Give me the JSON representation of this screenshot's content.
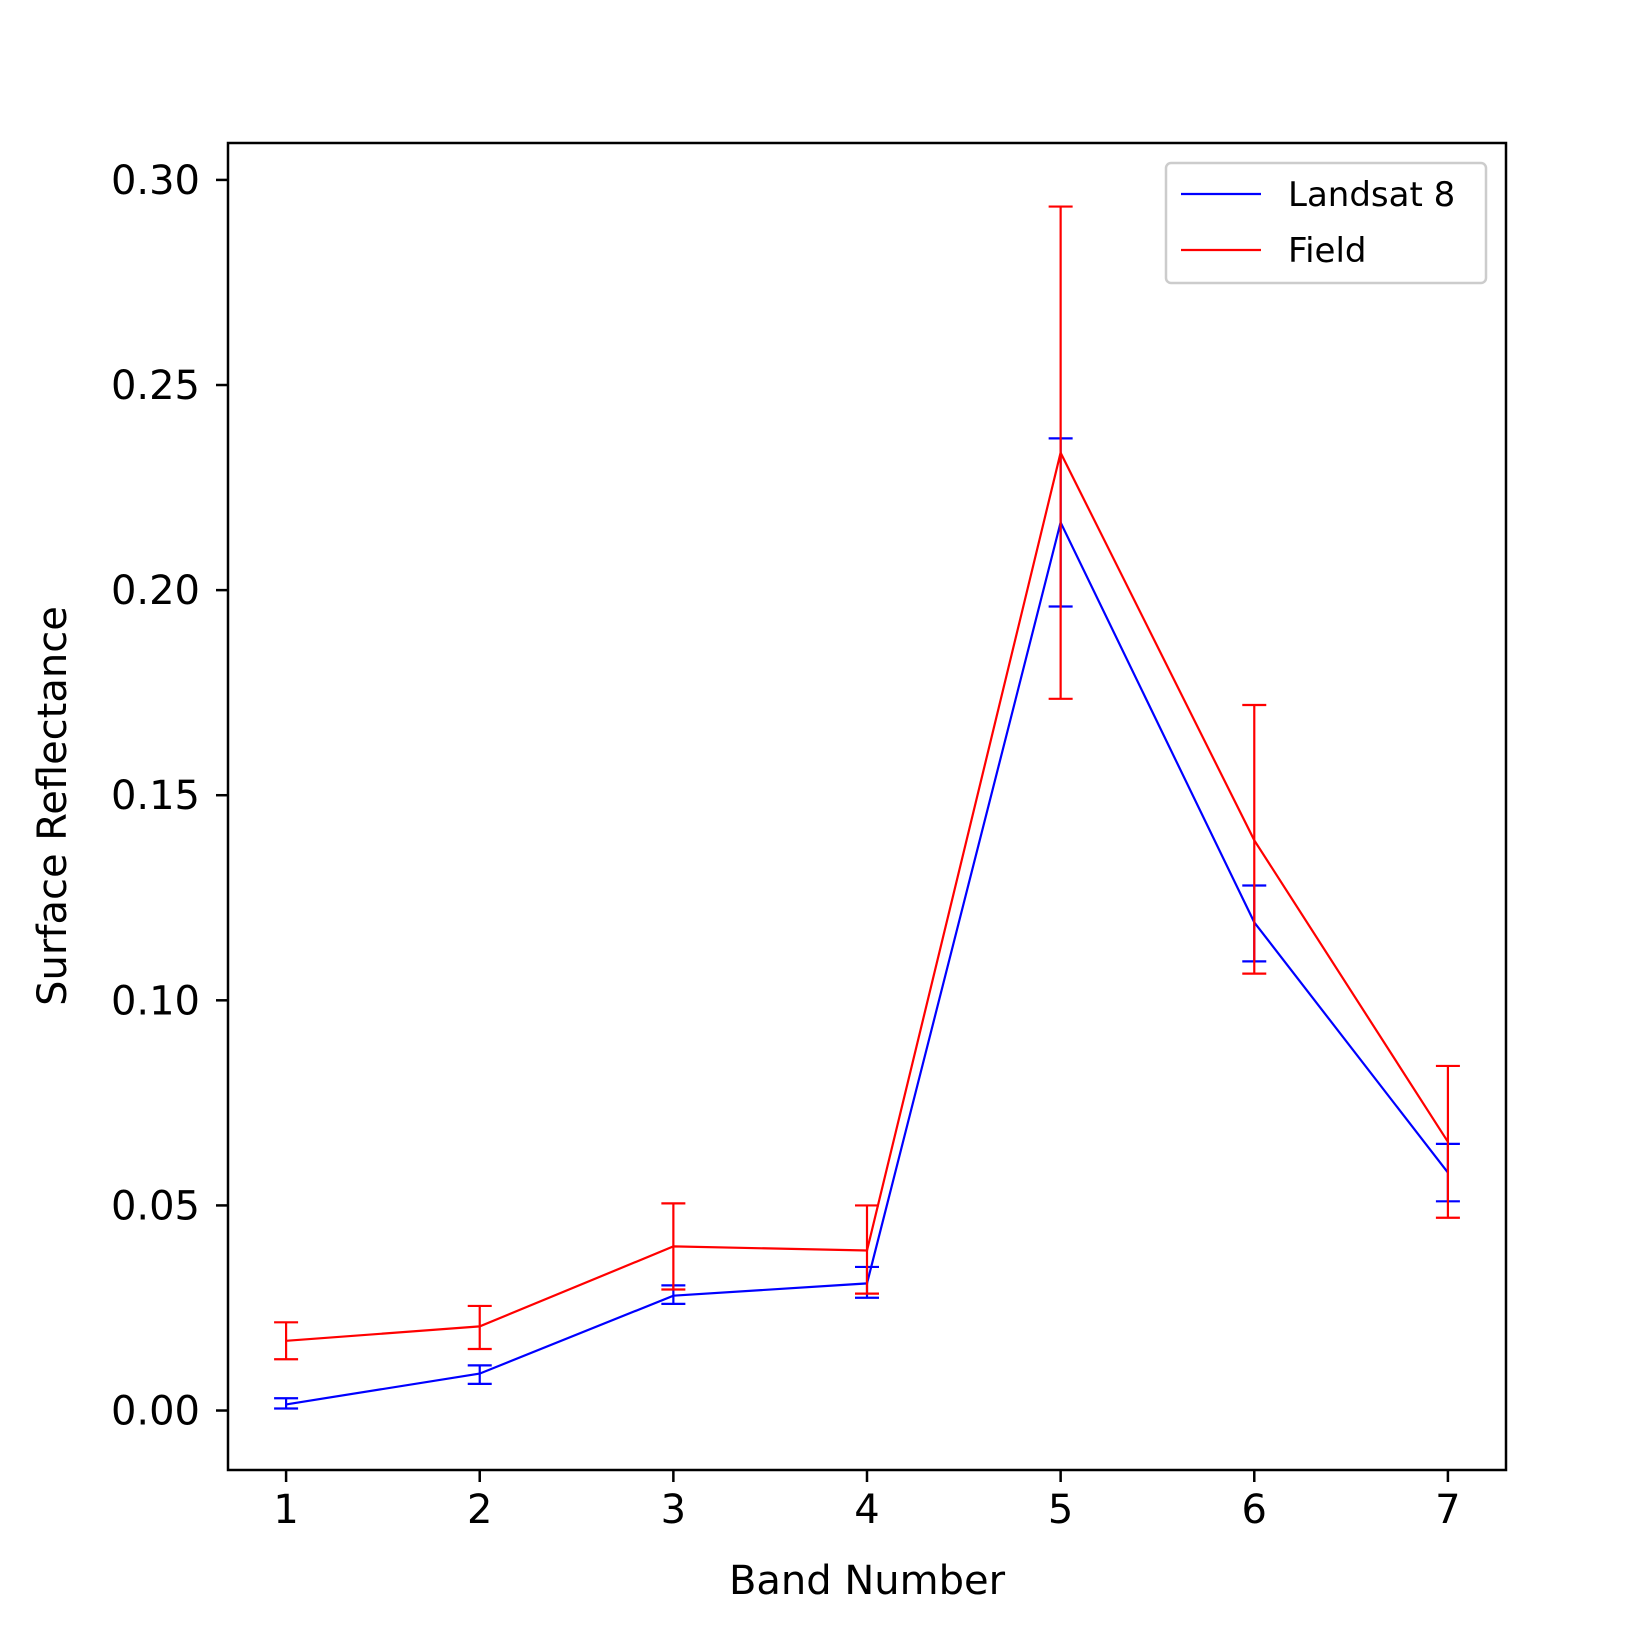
{
  "chart_data": {
    "type": "line",
    "xlabel": "Band Number",
    "ylabel": "Surface Reflectance",
    "xlim": [
      0.7,
      7.3
    ],
    "ylim": [
      -0.0145,
      0.309
    ],
    "x_ticks": [
      1,
      2,
      3,
      4,
      5,
      6,
      7
    ],
    "y_ticks": [
      "0.00",
      "0.05",
      "0.10",
      "0.15",
      "0.20",
      "0.25",
      "0.30"
    ],
    "grid": false,
    "legend_position": "top-right",
    "series": [
      {
        "name": "Landsat 8",
        "color": "#0000ff",
        "x": [
          1,
          2,
          3,
          4,
          5,
          6,
          7
        ],
        "y": [
          0.0015,
          0.009,
          0.028,
          0.031,
          0.2165,
          0.119,
          0.058
        ],
        "err_low": [
          0.0005,
          0.0065,
          0.026,
          0.0275,
          0.196,
          0.1095,
          0.051
        ],
        "err_high": [
          0.003,
          0.011,
          0.0305,
          0.035,
          0.237,
          0.128,
          0.065
        ]
      },
      {
        "name": "Field",
        "color": "#ff0000",
        "x": [
          1,
          2,
          3,
          4,
          5,
          6,
          7
        ],
        "y": [
          0.017,
          0.0205,
          0.04,
          0.039,
          0.2335,
          0.139,
          0.0655
        ],
        "err_low": [
          0.0125,
          0.015,
          0.0295,
          0.0285,
          0.1735,
          0.1065,
          0.047
        ],
        "err_high": [
          0.0215,
          0.0255,
          0.0505,
          0.05,
          0.2935,
          0.172,
          0.084
        ]
      }
    ]
  }
}
